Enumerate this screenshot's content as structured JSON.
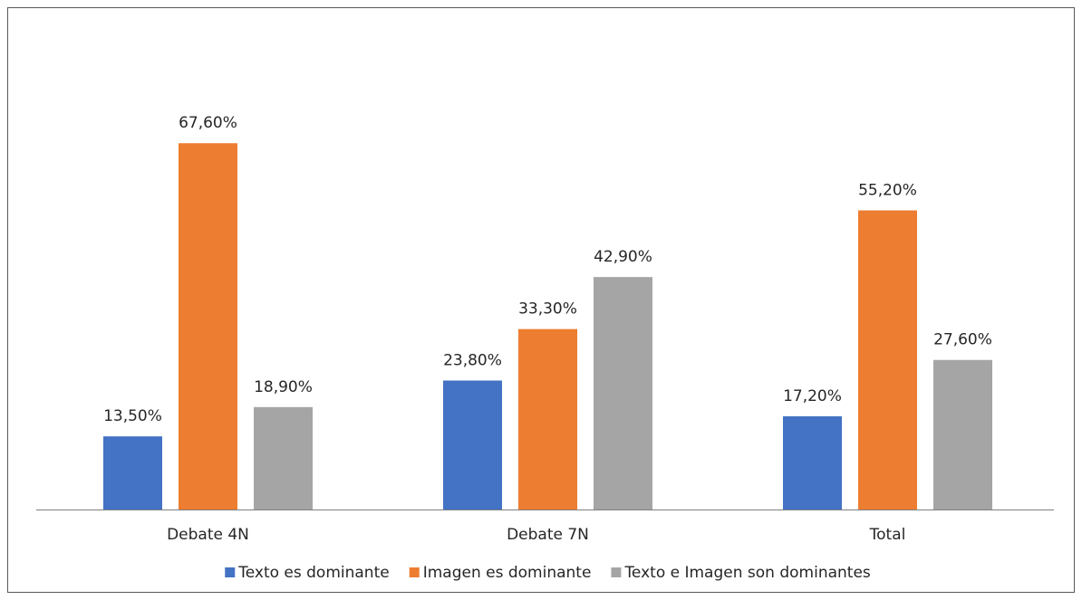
{
  "chart_data": {
    "type": "bar",
    "categories": [
      "Debate 4N",
      "Debate 7N",
      "Total"
    ],
    "series": [
      {
        "name": "Texto es dominante",
        "color": "#4472c4",
        "values": [
          13.5,
          23.8,
          17.2
        ],
        "value_labels": [
          "13,50%",
          "23,80%",
          "17,20%"
        ]
      },
      {
        "name": "Imagen es dominante",
        "color": "#ed7d31",
        "values": [
          67.6,
          33.3,
          55.2
        ],
        "value_labels": [
          "67,60%",
          "33,30%",
          "55,20%"
        ]
      },
      {
        "name": "Texto e Imagen son dominantes",
        "color": "#a5a5a5",
        "values": [
          18.9,
          42.9,
          27.6
        ],
        "value_labels": [
          "18,90%",
          "42,90%",
          "27,60%"
        ]
      }
    ],
    "ylim": [
      0,
      80
    ],
    "legend": "bottom"
  }
}
